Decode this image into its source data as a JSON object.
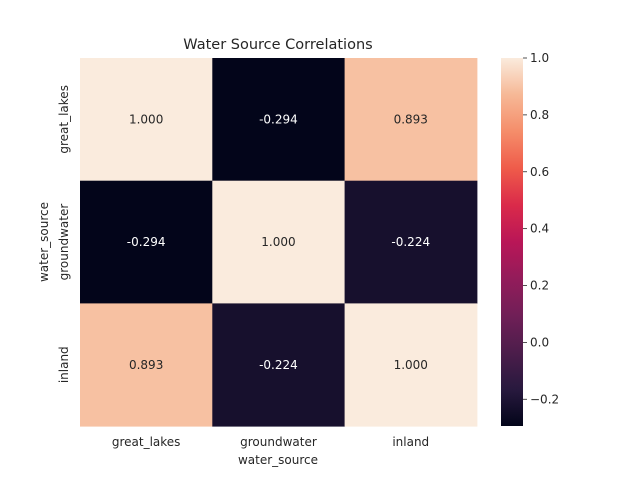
{
  "chart_data": {
    "type": "heatmap",
    "title": "Water Source Correlations",
    "xlabel": "water_source",
    "ylabel": "water_source",
    "x_categories": [
      "great_lakes",
      "groundwater",
      "inland"
    ],
    "y_categories": [
      "great_lakes",
      "groundwater",
      "inland"
    ],
    "values": [
      [
        1.0,
        -0.294,
        0.893
      ],
      [
        -0.294,
        1.0,
        -0.224
      ],
      [
        0.893,
        -0.224,
        1.0
      ]
    ],
    "cell_labels": [
      [
        "1.000",
        "-0.294",
        "0.893"
      ],
      [
        "-0.294",
        "1.000",
        "-0.224"
      ],
      [
        "0.893",
        "-0.224",
        "1.000"
      ]
    ],
    "colorbar": {
      "colormap": "rocket",
      "range": [
        -0.294,
        1.0
      ],
      "ticks": [
        1.0,
        0.8,
        0.6,
        0.4,
        0.2,
        0.0,
        -0.2
      ],
      "tick_labels": [
        "1.0",
        "0.8",
        "0.6",
        "0.4",
        "0.2",
        "0.0",
        "−0.2"
      ]
    },
    "grid": false
  }
}
